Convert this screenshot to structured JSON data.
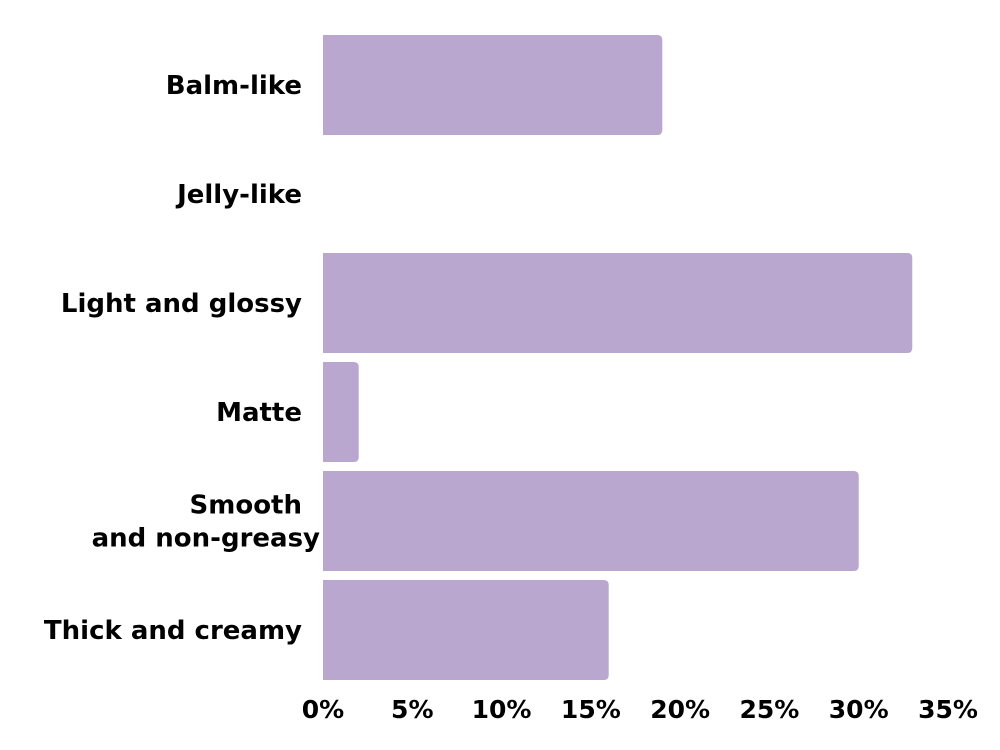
{
  "chart_data": {
    "type": "bar",
    "orientation": "horizontal",
    "title": "",
    "xlabel": "",
    "ylabel": "",
    "categories": [
      [
        "Balm-like"
      ],
      [
        "Jelly-like"
      ],
      [
        "Light and glossy"
      ],
      [
        "Matte"
      ],
      [
        "Smooth",
        "and non-greasy"
      ],
      [
        "Thick and creamy"
      ]
    ],
    "values": [
      19,
      0,
      33,
      2,
      30,
      16
    ],
    "value_unit": "%",
    "xlim": [
      0,
      35
    ],
    "x_ticks": [
      "0%",
      "5%",
      "10%",
      "15%",
      "20%",
      "25%",
      "30%",
      "35%"
    ],
    "grid": false,
    "legend": "none",
    "bar_color": "#b9a7d0"
  }
}
